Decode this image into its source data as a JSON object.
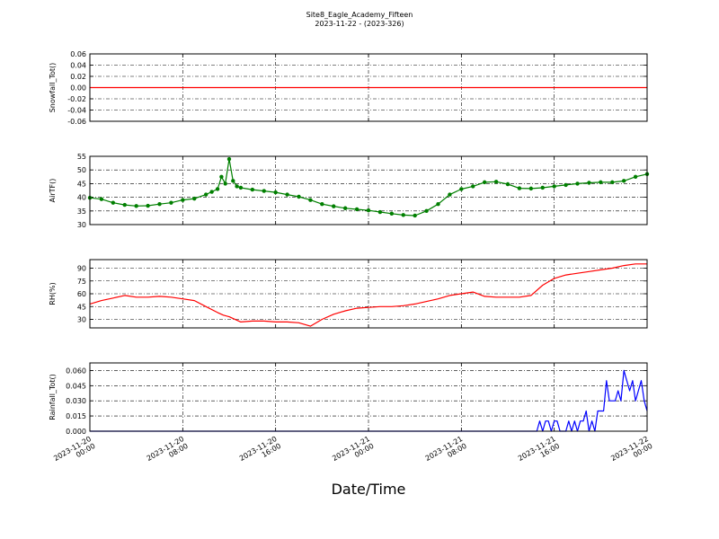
{
  "chart_data": {
    "type": "line",
    "title": "Site8_Eagle_Academy_Fifteen",
    "subtitle": "2023-11-22 - (2023-326)",
    "xlabel": "Date/Time",
    "x_tick_labels": [
      [
        "2023-11-20",
        "00:00"
      ],
      [
        "2023-11-20",
        "08:00"
      ],
      [
        "2023-11-20",
        "16:00"
      ],
      [
        "2023-11-21",
        "00:00"
      ],
      [
        "2023-11-21",
        "08:00"
      ],
      [
        "2023-11-21",
        "16:00"
      ],
      [
        "2023-11-22",
        "00:00"
      ]
    ],
    "xlim": [
      "2023-11-20 00:00",
      "2023-11-22 00:00"
    ],
    "grid": true,
    "panels": [
      {
        "ylabel": "Snowfall_Tot()",
        "ylim": [
          -0.06,
          0.06
        ],
        "yticks": [
          "0.06",
          "0.04",
          "0.02",
          "0.00",
          "-0.02",
          "-0.04",
          "-0.06"
        ],
        "ytick_values": [
          0.06,
          0.04,
          0.02,
          0.0,
          -0.02,
          -0.04,
          -0.06
        ],
        "color": "#ff0000",
        "markers": false,
        "series": {
          "x": [
            "2023-11-20 00:00",
            "2023-11-22 00:00"
          ],
          "y": [
            0,
            0
          ]
        }
      },
      {
        "ylabel": "AirTF()",
        "ylim": [
          30,
          55
        ],
        "yticks": [
          "55",
          "50",
          "45",
          "40",
          "35",
          "30"
        ],
        "ytick_values": [
          55,
          50,
          45,
          40,
          35,
          30
        ],
        "color": "#007f00",
        "markers": true,
        "series": {
          "x": [
            "2023-11-20 00:00",
            "2023-11-20 01:00",
            "2023-11-20 02:00",
            "2023-11-20 03:00",
            "2023-11-20 04:00",
            "2023-11-20 05:00",
            "2023-11-20 06:00",
            "2023-11-20 07:00",
            "2023-11-20 08:00",
            "2023-11-20 09:00",
            "2023-11-20 10:00",
            "2023-11-20 10:30",
            "2023-11-20 11:00",
            "2023-11-20 11:20",
            "2023-11-20 11:40",
            "2023-11-20 12:00",
            "2023-11-20 12:20",
            "2023-11-20 12:40",
            "2023-11-20 13:00",
            "2023-11-20 14:00",
            "2023-11-20 15:00",
            "2023-11-20 16:00",
            "2023-11-20 17:00",
            "2023-11-20 18:00",
            "2023-11-20 19:00",
            "2023-11-20 20:00",
            "2023-11-20 21:00",
            "2023-11-20 22:00",
            "2023-11-20 23:00",
            "2023-11-21 00:00",
            "2023-11-21 01:00",
            "2023-11-21 02:00",
            "2023-11-21 03:00",
            "2023-11-21 04:00",
            "2023-11-21 05:00",
            "2023-11-21 06:00",
            "2023-11-21 07:00",
            "2023-11-21 08:00",
            "2023-11-21 09:00",
            "2023-11-21 10:00",
            "2023-11-21 11:00",
            "2023-11-21 12:00",
            "2023-11-21 13:00",
            "2023-11-21 14:00",
            "2023-11-21 15:00",
            "2023-11-21 16:00",
            "2023-11-21 17:00",
            "2023-11-21 18:00",
            "2023-11-21 19:00",
            "2023-11-21 20:00",
            "2023-11-21 21:00",
            "2023-11-21 22:00",
            "2023-11-21 23:00",
            "2023-11-22 00:00"
          ],
          "y": [
            39.8,
            39.3,
            38.0,
            37.2,
            36.8,
            36.9,
            37.5,
            38.0,
            39.0,
            39.5,
            41.0,
            42.0,
            43.0,
            47.5,
            45.0,
            54.0,
            46.0,
            44.0,
            43.5,
            42.8,
            42.3,
            41.8,
            41.0,
            40.2,
            39.0,
            37.5,
            36.7,
            36.0,
            35.6,
            35.2,
            34.6,
            34.0,
            33.5,
            33.3,
            35.0,
            37.5,
            41.0,
            43.0,
            44.0,
            45.5,
            45.7,
            44.8,
            43.3,
            43.2,
            43.5,
            44.0,
            44.5,
            45.0,
            45.3,
            45.5,
            45.5,
            46.0,
            47.5,
            48.5
          ]
        }
      },
      {
        "ylabel": "RH(%)",
        "ylim": [
          20,
          100
        ],
        "yticks": [
          "90",
          "75",
          "60",
          "45",
          "30"
        ],
        "ytick_values": [
          90,
          75,
          60,
          45,
          30
        ],
        "color": "#ff0000",
        "markers": false,
        "series": {
          "x": [
            "2023-11-20 00:00",
            "2023-11-20 01:00",
            "2023-11-20 02:00",
            "2023-11-20 03:00",
            "2023-11-20 04:00",
            "2023-11-20 05:00",
            "2023-11-20 06:00",
            "2023-11-20 07:00",
            "2023-11-20 08:00",
            "2023-11-20 09:00",
            "2023-11-20 10:00",
            "2023-11-20 11:00",
            "2023-11-20 11:30",
            "2023-11-20 12:00",
            "2023-11-20 13:00",
            "2023-11-20 14:00",
            "2023-11-20 15:00",
            "2023-11-20 16:00",
            "2023-11-20 17:00",
            "2023-11-20 18:00",
            "2023-11-20 19:00",
            "2023-11-20 20:00",
            "2023-11-20 21:00",
            "2023-11-20 22:00",
            "2023-11-20 23:00",
            "2023-11-21 00:00",
            "2023-11-21 01:00",
            "2023-11-21 02:00",
            "2023-11-21 03:00",
            "2023-11-21 04:00",
            "2023-11-21 05:00",
            "2023-11-21 06:00",
            "2023-11-21 07:00",
            "2023-11-21 08:00",
            "2023-11-21 09:00",
            "2023-11-21 10:00",
            "2023-11-21 11:00",
            "2023-11-21 12:00",
            "2023-11-21 13:00",
            "2023-11-21 14:00",
            "2023-11-21 15:00",
            "2023-11-21 16:00",
            "2023-11-21 17:00",
            "2023-11-21 18:00",
            "2023-11-21 19:00",
            "2023-11-21 20:00",
            "2023-11-21 21:00",
            "2023-11-21 22:00",
            "2023-11-21 23:00",
            "2023-11-22 00:00"
          ],
          "y": [
            48,
            52,
            55,
            58,
            56,
            56,
            57,
            56,
            54,
            52,
            45,
            38,
            35,
            33,
            27,
            28,
            28,
            27,
            27,
            26,
            22,
            30,
            36,
            40,
            43,
            44,
            45,
            45,
            46,
            48,
            51,
            54,
            58,
            60,
            62,
            57,
            56,
            56,
            56,
            58,
            70,
            78,
            82,
            84,
            86,
            88,
            90,
            93,
            95,
            95
          ]
        }
      },
      {
        "ylabel": "Rainfall_Tot()",
        "ylim": [
          0,
          0.0675
        ],
        "yticks": [
          "0.060",
          "0.045",
          "0.030",
          "0.015",
          "0.000"
        ],
        "ytick_values": [
          0.06,
          0.045,
          0.03,
          0.015,
          0.0
        ],
        "color": "#0000ff",
        "markers": false,
        "series": {
          "x": [
            "2023-11-20 00:00",
            "2023-11-21 14:30",
            "2023-11-21 14:45",
            "2023-11-21 15:00",
            "2023-11-21 15:15",
            "2023-11-21 15:30",
            "2023-11-21 15:45",
            "2023-11-21 16:00",
            "2023-11-21 16:15",
            "2023-11-21 16:30",
            "2023-11-21 16:45",
            "2023-11-21 17:00",
            "2023-11-21 17:15",
            "2023-11-21 17:30",
            "2023-11-21 17:45",
            "2023-11-21 18:00",
            "2023-11-21 18:15",
            "2023-11-21 18:30",
            "2023-11-21 18:45",
            "2023-11-21 19:00",
            "2023-11-21 19:15",
            "2023-11-21 19:30",
            "2023-11-21 19:45",
            "2023-11-21 20:00",
            "2023-11-21 20:15",
            "2023-11-21 20:30",
            "2023-11-21 20:45",
            "2023-11-21 21:00",
            "2023-11-21 21:15",
            "2023-11-21 21:30",
            "2023-11-21 21:45",
            "2023-11-21 22:00",
            "2023-11-21 22:15",
            "2023-11-21 22:30",
            "2023-11-21 22:45",
            "2023-11-21 23:00",
            "2023-11-21 23:15",
            "2023-11-21 23:30",
            "2023-11-21 23:45",
            "2023-11-22 00:00"
          ],
          "y": [
            0,
            0,
            0.01,
            0,
            0.01,
            0.01,
            0,
            0.01,
            0.01,
            0,
            0,
            0,
            0.01,
            0,
            0.01,
            0,
            0.01,
            0.01,
            0.02,
            0,
            0.01,
            0,
            0.02,
            0.02,
            0.02,
            0.05,
            0.03,
            0.03,
            0.03,
            0.04,
            0.03,
            0.06,
            0.05,
            0.04,
            0.05,
            0.03,
            0.04,
            0.05,
            0.03,
            0.02
          ]
        }
      }
    ]
  }
}
